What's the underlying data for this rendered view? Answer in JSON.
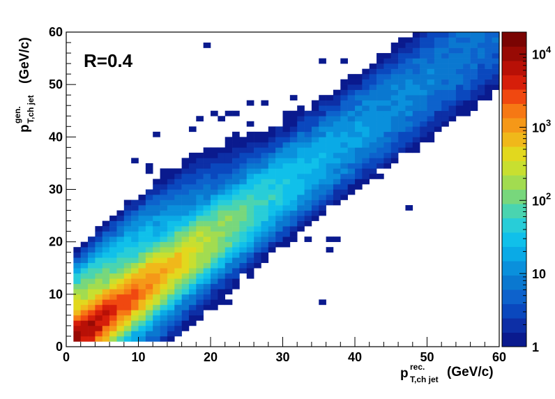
{
  "chart_data": {
    "type": "heatmap",
    "annotation": "R=0.4",
    "xlabel": {
      "main": "p",
      "sup": "rec.",
      "sub": "T,ch jet",
      "unit": "(GeV/c)"
    },
    "ylabel": {
      "main": "p",
      "sup": "gen.",
      "sub": "T,ch jet",
      "unit": "(GeV/c)"
    },
    "xlim": [
      0,
      60
    ],
    "ylim": [
      0,
      60
    ],
    "xticks": [
      "0",
      "10",
      "20",
      "30",
      "40",
      "50",
      "60"
    ],
    "yticks": [
      "0",
      "10",
      "20",
      "30",
      "40",
      "50",
      "60"
    ],
    "bin_width": 1,
    "colorbar": {
      "scale": "log",
      "range": [
        1,
        20000
      ],
      "ticks": [
        {
          "base": "1",
          "exp": ""
        },
        {
          "base": "10",
          "exp": ""
        },
        {
          "base": "10",
          "exp": "2"
        },
        {
          "base": "10",
          "exp": "3"
        },
        {
          "base": "10",
          "exp": "4"
        }
      ],
      "palette": [
        "#0a1a8e",
        "#0d2fa6",
        "#0a48be",
        "#0d62cc",
        "#0a78d0",
        "#0a90dc",
        "#0aaae6",
        "#10c0ea",
        "#28cdd8",
        "#4ad4b0",
        "#78d77c",
        "#a2dc50",
        "#c8df30",
        "#e2d81e",
        "#f0b81a",
        "#f59818",
        "#f67814",
        "#f04810",
        "#d61e0a",
        "#b81006",
        "#980a04",
        "#7a0402"
      ]
    },
    "distribution": {
      "description_of_values": "diagonal band: count per bin peaks near (x≈y) at low pT",
      "peak_count": 15000,
      "diagonal_offset": -1.0,
      "width_base": 1.6,
      "width_growth": 0.07
    },
    "outlier_bins": [
      [
        19,
        57
      ],
      [
        49,
        59
      ],
      [
        35,
        54
      ],
      [
        38,
        54
      ],
      [
        56,
        58
      ],
      [
        57,
        58
      ],
      [
        39,
        48
      ],
      [
        41,
        48
      ],
      [
        46,
        48
      ],
      [
        17,
        41
      ],
      [
        18,
        43
      ],
      [
        20,
        44
      ],
      [
        21,
        43
      ],
      [
        22,
        44
      ],
      [
        23,
        44
      ],
      [
        16,
        30
      ],
      [
        16,
        29
      ],
      [
        14,
        25
      ],
      [
        10,
        26
      ],
      [
        8,
        26
      ],
      [
        7,
        25
      ],
      [
        35,
        8
      ],
      [
        47,
        26
      ],
      [
        11,
        33
      ],
      [
        13,
        33
      ],
      [
        12,
        40
      ],
      [
        15,
        31
      ],
      [
        9,
        35
      ],
      [
        11,
        34
      ],
      [
        25,
        42
      ],
      [
        26,
        36
      ],
      [
        28,
        22
      ],
      [
        28,
        23
      ],
      [
        30,
        21
      ],
      [
        31,
        22
      ],
      [
        33,
        20
      ],
      [
        30,
        19
      ],
      [
        36,
        18
      ],
      [
        37,
        20
      ],
      [
        36,
        20
      ],
      [
        45,
        37
      ],
      [
        46,
        38
      ],
      [
        48,
        43
      ],
      [
        49,
        43
      ],
      [
        39,
        47
      ],
      [
        44,
        41
      ],
      [
        51,
        50
      ],
      [
        52,
        50
      ],
      [
        33,
        42
      ],
      [
        31,
        47
      ],
      [
        26,
        40
      ],
      [
        22,
        38
      ],
      [
        23,
        40
      ],
      [
        30,
        44
      ],
      [
        25,
        46
      ],
      [
        27,
        46
      ],
      [
        32,
        45
      ],
      [
        19,
        12
      ],
      [
        20,
        11
      ],
      [
        22,
        10
      ],
      [
        23,
        11
      ],
      [
        18,
        15
      ],
      [
        20,
        16
      ],
      [
        25,
        13
      ],
      [
        23,
        15
      ],
      [
        24,
        14
      ],
      [
        21,
        9
      ],
      [
        22,
        8
      ],
      [
        18,
        7
      ],
      [
        14,
        6
      ],
      [
        15,
        3
      ],
      [
        17,
        8
      ],
      [
        19,
        8
      ],
      [
        13,
        9
      ],
      [
        14,
        10
      ],
      [
        15,
        11
      ],
      [
        16,
        11
      ],
      [
        17,
        12
      ],
      [
        6,
        13
      ],
      [
        6,
        14
      ],
      [
        5,
        10
      ],
      [
        4,
        11
      ],
      [
        7,
        12
      ],
      [
        5,
        15
      ],
      [
        7,
        17
      ],
      [
        8,
        18
      ],
      [
        9,
        20
      ],
      [
        10,
        21
      ],
      [
        12,
        22
      ],
      [
        13,
        23
      ],
      [
        16,
        24
      ],
      [
        17,
        25
      ],
      [
        18,
        26
      ],
      [
        19,
        27
      ],
      [
        20,
        28
      ],
      [
        21,
        29
      ],
      [
        23,
        30
      ],
      [
        24,
        31
      ],
      [
        26,
        32
      ],
      [
        27,
        34
      ],
      [
        28,
        35
      ],
      [
        29,
        36
      ],
      [
        31,
        37
      ],
      [
        32,
        38
      ],
      [
        34,
        39
      ],
      [
        35,
        40
      ],
      [
        37,
        41
      ],
      [
        38,
        42
      ],
      [
        40,
        43
      ],
      [
        41,
        45
      ],
      [
        43,
        46
      ],
      [
        44,
        47
      ],
      [
        46,
        48
      ],
      [
        47,
        49
      ],
      [
        49,
        51
      ],
      [
        50,
        52
      ],
      [
        52,
        53
      ],
      [
        53,
        54
      ],
      [
        55,
        55
      ],
      [
        56,
        56
      ],
      [
        58,
        57
      ],
      [
        59,
        58
      ],
      [
        57,
        55
      ],
      [
        55,
        53
      ],
      [
        53,
        52
      ],
      [
        51,
        50
      ],
      [
        49,
        48
      ],
      [
        47,
        46
      ],
      [
        45,
        44
      ],
      [
        43,
        42
      ],
      [
        41,
        40
      ],
      [
        39,
        38
      ],
      [
        37,
        36
      ],
      [
        35,
        35
      ],
      [
        33,
        33
      ],
      [
        31,
        31
      ],
      [
        29,
        29
      ],
      [
        27,
        27
      ],
      [
        26,
        25
      ],
      [
        24,
        23
      ],
      [
        22,
        21
      ],
      [
        21,
        19
      ],
      [
        20,
        17
      ],
      [
        23,
        20
      ],
      [
        25,
        22
      ],
      [
        27,
        24
      ],
      [
        29,
        26
      ],
      [
        31,
        28
      ],
      [
        33,
        30
      ],
      [
        35,
        32
      ],
      [
        37,
        34
      ],
      [
        39,
        36
      ],
      [
        41,
        38
      ],
      [
        43,
        40
      ],
      [
        45,
        42
      ],
      [
        47,
        44
      ],
      [
        49,
        46
      ],
      [
        51,
        48
      ],
      [
        53,
        50
      ],
      [
        55,
        52
      ],
      [
        57,
        54
      ],
      [
        58,
        56
      ],
      [
        59,
        57
      ],
      [
        58,
        59
      ],
      [
        57,
        59
      ],
      [
        56,
        57
      ],
      [
        55,
        56
      ],
      [
        54,
        56
      ],
      [
        53,
        55
      ],
      [
        52,
        54
      ],
      [
        51,
        53
      ],
      [
        50,
        53
      ],
      [
        48,
        50
      ],
      [
        46,
        49
      ],
      [
        44,
        48
      ],
      [
        42,
        47
      ],
      [
        40,
        45
      ],
      [
        38,
        44
      ],
      [
        36,
        42
      ],
      [
        34,
        41
      ],
      [
        32,
        40
      ],
      [
        30,
        39
      ],
      [
        28,
        38
      ],
      [
        26,
        37
      ],
      [
        25,
        35
      ],
      [
        23,
        34
      ],
      [
        22,
        33
      ],
      [
        20,
        32
      ],
      [
        18,
        30
      ],
      [
        17,
        29
      ],
      [
        15,
        28
      ],
      [
        14,
        27
      ],
      [
        12,
        25
      ],
      [
        11,
        24
      ],
      [
        10,
        23
      ],
      [
        9,
        22
      ],
      [
        8,
        21
      ],
      [
        7,
        19
      ],
      [
        6,
        18
      ],
      [
        5,
        16
      ],
      [
        4,
        14
      ],
      [
        3,
        12
      ],
      [
        3,
        9
      ],
      [
        2,
        6
      ],
      [
        7,
        9
      ],
      [
        9,
        7
      ],
      [
        11,
        8
      ],
      [
        12,
        6
      ],
      [
        10,
        5
      ],
      [
        8,
        4
      ],
      [
        6,
        3
      ],
      [
        5,
        2
      ],
      [
        4,
        2
      ],
      [
        3,
        1
      ],
      [
        2,
        1
      ],
      [
        1,
        1
      ],
      [
        2,
        2
      ],
      [
        16,
        4
      ],
      [
        13,
        5
      ],
      [
        11,
        3
      ]
    ]
  }
}
